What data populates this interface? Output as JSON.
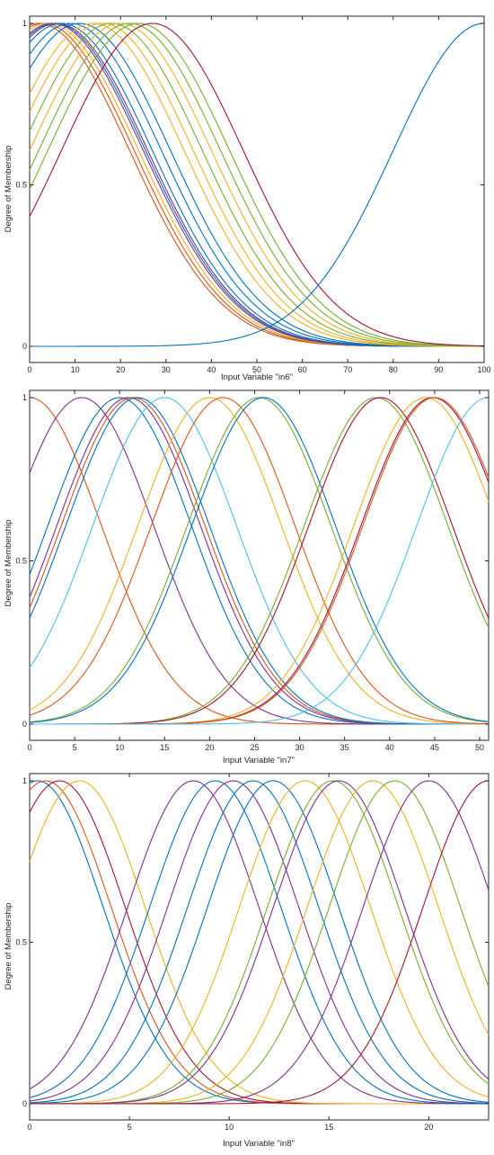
{
  "chart_data": [
    {
      "type": "line",
      "title": "",
      "xlabel": "Input Variable \"in6\"",
      "ylabel": "Degree of Membership",
      "xlim": [
        0,
        100
      ],
      "ylim": [
        0,
        1
      ],
      "xticks": [
        0,
        10,
        20,
        30,
        40,
        50,
        60,
        70,
        80,
        90,
        100
      ],
      "yticks": [
        0,
        0.5,
        1
      ],
      "ytick_labels": [
        "0",
        "0.5",
        "1"
      ],
      "grid": false,
      "legend": "none",
      "membership_function": "gaussmf",
      "series": [
        {
          "mf": "gaussmf",
          "sigma": 20,
          "center": 2,
          "color": "#D95319"
        },
        {
          "mf": "gaussmf",
          "sigma": 20,
          "center": 3,
          "color": "#D95319"
        },
        {
          "mf": "gaussmf",
          "sigma": 20,
          "center": 4,
          "color": "#EDB120"
        },
        {
          "mf": "gaussmf",
          "sigma": 20,
          "center": 5,
          "color": "#7E2F8E"
        },
        {
          "mf": "gaussmf",
          "sigma": 20,
          "center": 5.5,
          "color": "#0072BD"
        },
        {
          "mf": "gaussmf",
          "sigma": 20,
          "center": 6,
          "color": "#7E2F8E"
        },
        {
          "mf": "gaussmf",
          "sigma": 20,
          "center": 7,
          "color": "#0072BD"
        },
        {
          "mf": "gaussmf",
          "sigma": 20,
          "center": 9,
          "color": "#0072BD"
        },
        {
          "mf": "gaussmf",
          "sigma": 20,
          "center": 11,
          "color": "#0072BD"
        },
        {
          "mf": "gaussmf",
          "sigma": 20,
          "center": 14,
          "color": "#EDB120"
        },
        {
          "mf": "gaussmf",
          "sigma": 20,
          "center": 16,
          "color": "#EDB120"
        },
        {
          "mf": "gaussmf",
          "sigma": 20,
          "center": 18,
          "color": "#77AC30"
        },
        {
          "mf": "gaussmf",
          "sigma": 20,
          "center": 20,
          "color": "#EDB120"
        },
        {
          "mf": "gaussmf",
          "sigma": 20,
          "center": 22,
          "color": "#77AC30"
        },
        {
          "mf": "gaussmf",
          "sigma": 20,
          "center": 24,
          "color": "#77AC30"
        },
        {
          "mf": "gaussmf",
          "sigma": 20,
          "center": 27,
          "color": "#A2142F"
        },
        {
          "mf": "gaussmf",
          "sigma": 20,
          "center": 100,
          "color": "#0072BD"
        }
      ]
    },
    {
      "type": "line",
      "title": "",
      "xlabel": "Input Variable \"in7\"",
      "ylabel": "Degree of Membership",
      "xlim": [
        0,
        51
      ],
      "ylim": [
        0,
        1
      ],
      "xticks": [
        0,
        5,
        10,
        15,
        20,
        25,
        30,
        35,
        40,
        45,
        50
      ],
      "yticks": [
        0,
        0.5,
        1
      ],
      "ytick_labels": [
        "0",
        "0.5",
        "1"
      ],
      "grid": false,
      "legend": "none",
      "membership_function": "gaussmf",
      "series": [
        {
          "mf": "gaussmf",
          "sigma": 8,
          "center": 0,
          "color": "#D95319"
        },
        {
          "mf": "gaussmf",
          "sigma": 8,
          "center": 5.8,
          "color": "#7E2F8E"
        },
        {
          "mf": "gaussmf",
          "sigma": 8,
          "center": 10,
          "color": "#0072BD"
        },
        {
          "mf": "gaussmf",
          "sigma": 8,
          "center": 11,
          "color": "#7E2F8E"
        },
        {
          "mf": "gaussmf",
          "sigma": 8,
          "center": 11.5,
          "color": "#D95319"
        },
        {
          "mf": "gaussmf",
          "sigma": 8,
          "center": 12,
          "color": "#0072BD"
        },
        {
          "mf": "gaussmf",
          "sigma": 8,
          "center": 15,
          "color": "#4DBEEE"
        },
        {
          "mf": "gaussmf",
          "sigma": 8,
          "center": 20,
          "color": "#EDB120"
        },
        {
          "mf": "gaussmf",
          "sigma": 8,
          "center": 21.5,
          "color": "#D95319"
        },
        {
          "mf": "gaussmf",
          "sigma": 8,
          "center": 25.5,
          "color": "#77AC30"
        },
        {
          "mf": "gaussmf",
          "sigma": 8,
          "center": 26,
          "color": "#0072BD"
        },
        {
          "mf": "gaussmf",
          "sigma": 8,
          "center": 38.5,
          "color": "#77AC30"
        },
        {
          "mf": "gaussmf",
          "sigma": 8,
          "center": 39,
          "color": "#A2142F"
        },
        {
          "mf": "gaussmf",
          "sigma": 8,
          "center": 44,
          "color": "#EDB120"
        },
        {
          "mf": "gaussmf",
          "sigma": 8,
          "center": 44.8,
          "color": "#A2142F"
        },
        {
          "mf": "gaussmf",
          "sigma": 8,
          "center": 45,
          "color": "#D95319"
        },
        {
          "mf": "gaussmf",
          "sigma": 8,
          "center": 51,
          "color": "#4DBEEE"
        }
      ]
    },
    {
      "type": "line",
      "title": "",
      "xlabel": "Input Variable \"in8\"",
      "ylabel": "Degree of Membership",
      "xlim": [
        0,
        23
      ],
      "ylim": [
        0,
        1
      ],
      "xticks": [
        0,
        5,
        10,
        15,
        20
      ],
      "yticks": [
        0,
        0.5,
        1
      ],
      "ytick_labels": [
        "0",
        "0.5",
        "1"
      ],
      "grid": false,
      "legend": "none",
      "membership_function": "gaussmf",
      "series": [
        {
          "mf": "gaussmf",
          "sigma": 3.3,
          "center": 0.4,
          "color": "#0072BD"
        },
        {
          "mf": "gaussmf",
          "sigma": 3.3,
          "center": 0.8,
          "color": "#D95319"
        },
        {
          "mf": "gaussmf",
          "sigma": 3.3,
          "center": 1.5,
          "color": "#A2142F"
        },
        {
          "mf": "gaussmf",
          "sigma": 3.3,
          "center": 2.5,
          "color": "#EDB120"
        },
        {
          "mf": "gaussmf",
          "sigma": 3.3,
          "center": 8.2,
          "color": "#7E2F8E"
        },
        {
          "mf": "gaussmf",
          "sigma": 3.3,
          "center": 9.3,
          "color": "#0072BD"
        },
        {
          "mf": "gaussmf",
          "sigma": 3.3,
          "center": 10.2,
          "color": "#7E2F8E"
        },
        {
          "mf": "gaussmf",
          "sigma": 3.3,
          "center": 11.2,
          "color": "#0072BD"
        },
        {
          "mf": "gaussmf",
          "sigma": 3.3,
          "center": 12.2,
          "color": "#0072BD"
        },
        {
          "mf": "gaussmf",
          "sigma": 3.3,
          "center": 13.8,
          "color": "#EDB120"
        },
        {
          "mf": "gaussmf",
          "sigma": 3.3,
          "center": 15.2,
          "color": "#77AC30"
        },
        {
          "mf": "gaussmf",
          "sigma": 3.3,
          "center": 15.5,
          "color": "#7E2F8E"
        },
        {
          "mf": "gaussmf",
          "sigma": 3.3,
          "center": 17.2,
          "color": "#EDB120"
        },
        {
          "mf": "gaussmf",
          "sigma": 3.3,
          "center": 18.3,
          "color": "#77AC30"
        },
        {
          "mf": "gaussmf",
          "sigma": 3.3,
          "center": 20,
          "color": "#7E2F8E"
        },
        {
          "mf": "gaussmf",
          "sigma": 3.3,
          "center": 23,
          "color": "#A2142F"
        }
      ]
    }
  ]
}
